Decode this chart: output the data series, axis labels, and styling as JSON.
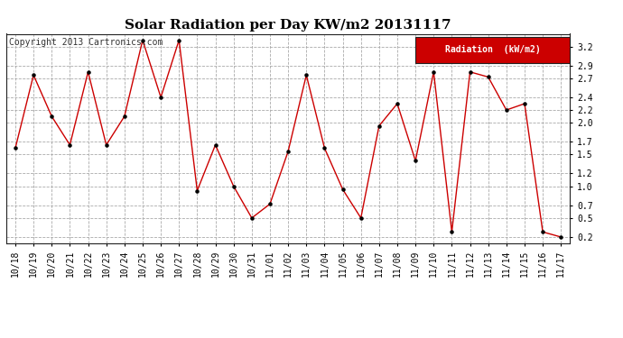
{
  "title": "Solar Radiation per Day KW/m2 20131117",
  "copyright_text": "Copyright 2013 Cartronics.com",
  "legend_label": "Radiation  (kW/m2)",
  "dates": [
    "10/18",
    "10/19",
    "10/20",
    "10/21",
    "10/22",
    "10/23",
    "10/24",
    "10/25",
    "10/26",
    "10/27",
    "10/28",
    "10/29",
    "10/30",
    "10/31",
    "11/01",
    "11/02",
    "11/03",
    "11/04",
    "11/05",
    "11/06",
    "11/07",
    "11/08",
    "11/09",
    "11/10",
    "11/11",
    "11/12",
    "11/13",
    "11/14",
    "11/15",
    "11/16",
    "11/17"
  ],
  "values": [
    1.6,
    2.75,
    2.1,
    1.65,
    2.8,
    1.65,
    2.1,
    3.3,
    2.4,
    3.3,
    0.93,
    1.65,
    1.0,
    0.5,
    0.72,
    1.55,
    2.75,
    1.6,
    0.95,
    0.5,
    1.95,
    2.3,
    1.4,
    2.8,
    0.28,
    2.8,
    2.72,
    2.2,
    2.3,
    0.28,
    0.2
  ],
  "ylim": [
    0.1,
    3.4
  ],
  "yticks": [
    0.2,
    0.5,
    0.7,
    1.0,
    1.2,
    1.5,
    1.7,
    2.0,
    2.2,
    2.4,
    2.7,
    2.9,
    3.2
  ],
  "line_color": "#cc0000",
  "marker_color": "#000000",
  "bg_color": "#ffffff",
  "grid_color": "#aaaaaa",
  "legend_bg": "#cc0000",
  "legend_text_color": "#ffffff",
  "title_fontsize": 11,
  "tick_fontsize": 7,
  "copyright_fontsize": 7,
  "legend_fontsize": 7
}
